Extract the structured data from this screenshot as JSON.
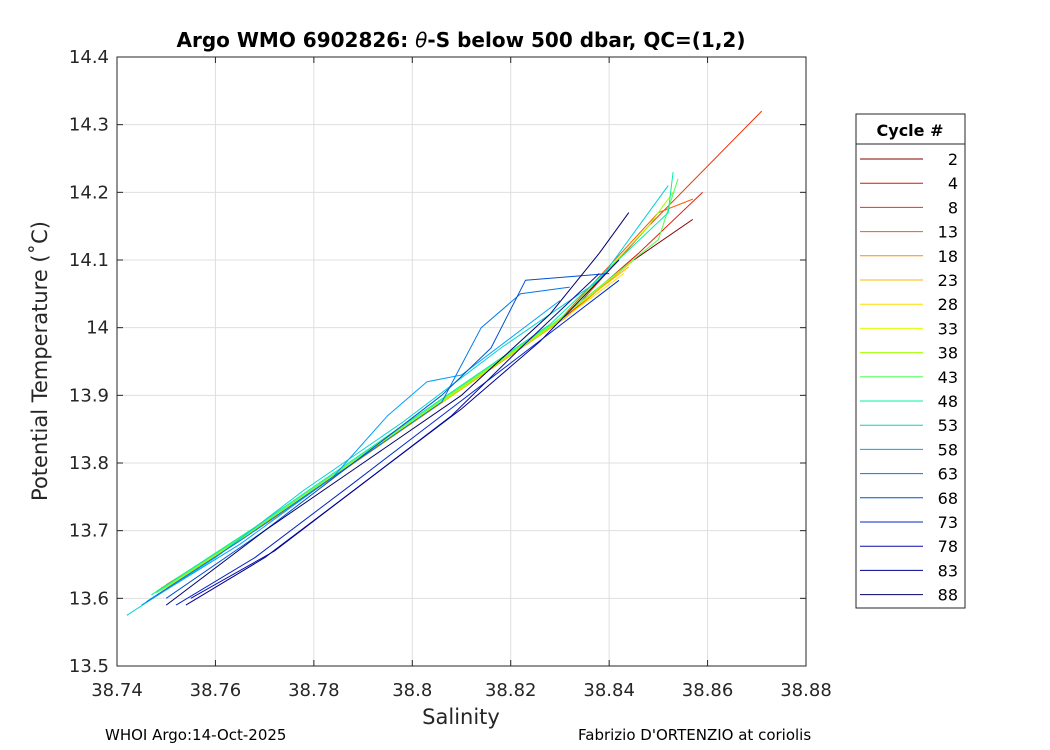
{
  "chart_data": {
    "type": "line",
    "title_parts": {
      "prefix": "Argo WMO 6902826: ",
      "theta": "θ",
      "suffix": "-S below 500 dbar,  QC=(1,2)"
    },
    "xlabel": "Salinity",
    "ylabel": "Potential Temperature (˚C)",
    "xlim": [
      38.74,
      38.88
    ],
    "ylim": [
      13.5,
      14.4
    ],
    "xticks": [
      38.74,
      38.76,
      38.78,
      38.8,
      38.82,
      38.84,
      38.86,
      38.88
    ],
    "xtick_labels": [
      "38.74",
      "38.76",
      "38.78",
      "38.8",
      "38.82",
      "38.84",
      "38.86",
      "38.88"
    ],
    "yticks": [
      13.5,
      13.6,
      13.7,
      13.8,
      13.9,
      14.0,
      14.1,
      14.2,
      14.3,
      14.4
    ],
    "ytick_labels": [
      "13.5",
      "13.6",
      "13.7",
      "13.8",
      "13.9",
      "14",
      "14.1",
      "14.2",
      "14.3",
      "14.4"
    ],
    "grid": true,
    "legend": {
      "title": "Cycle #",
      "placement": "right"
    },
    "series": [
      {
        "name": "2",
        "color": "#800000",
        "salinity": [
          38.748,
          38.77,
          38.79,
          38.81,
          38.83,
          38.845,
          38.857
        ],
        "theta": [
          13.61,
          13.71,
          13.81,
          13.91,
          14.01,
          14.1,
          14.16
        ]
      },
      {
        "name": "4",
        "color": "#e61000",
        "salinity": [
          38.749,
          38.771,
          38.791,
          38.811,
          38.831,
          38.846,
          38.859
        ],
        "theta": [
          13.615,
          13.715,
          13.815,
          13.915,
          14.015,
          14.11,
          14.2
        ]
      },
      {
        "name": "8",
        "color": "#f23000",
        "salinity": [
          38.75,
          38.772,
          38.792,
          38.812,
          38.832,
          38.848,
          38.871
        ],
        "theta": [
          13.62,
          13.72,
          13.82,
          13.92,
          14.02,
          14.15,
          14.32
        ]
      },
      {
        "name": "13",
        "color": "#ff5a00",
        "salinity": [
          38.748,
          38.77,
          38.79,
          38.81,
          38.83,
          38.85,
          38.857
        ],
        "theta": [
          13.61,
          13.712,
          13.812,
          13.912,
          14.012,
          14.17,
          14.19
        ]
      },
      {
        "name": "18",
        "color": "#ff8c00",
        "salinity": [
          38.749,
          38.771,
          38.791,
          38.811,
          38.831,
          38.845
        ],
        "theta": [
          13.612,
          13.714,
          13.814,
          13.914,
          14.014,
          14.1
        ]
      },
      {
        "name": "23",
        "color": "#ffb400",
        "salinity": [
          38.749,
          38.77,
          38.79,
          38.81,
          38.83,
          38.844
        ],
        "theta": [
          13.613,
          13.713,
          13.813,
          13.913,
          14.013,
          14.09
        ]
      },
      {
        "name": "28",
        "color": "#ffdc00",
        "salinity": [
          38.75,
          38.771,
          38.791,
          38.811,
          38.831,
          38.843
        ],
        "theta": [
          13.615,
          13.715,
          13.815,
          13.915,
          14.015,
          14.08
        ]
      },
      {
        "name": "33",
        "color": "#dcff00",
        "salinity": [
          38.749,
          38.77,
          38.79,
          38.81,
          38.83,
          38.845
        ],
        "theta": [
          13.612,
          13.712,
          13.812,
          13.912,
          14.012,
          14.1
        ]
      },
      {
        "name": "38",
        "color": "#a0ff00",
        "salinity": [
          38.748,
          38.77,
          38.79,
          38.81,
          38.83,
          38.848,
          38.853
        ],
        "theta": [
          13.61,
          13.71,
          13.81,
          13.91,
          14.01,
          14.15,
          14.2
        ]
      },
      {
        "name": "43",
        "color": "#50ff50",
        "salinity": [
          38.748,
          38.769,
          38.789,
          38.809,
          38.829,
          38.85,
          38.854
        ],
        "theta": [
          13.608,
          13.708,
          13.808,
          13.908,
          14.008,
          14.13,
          14.22
        ]
      },
      {
        "name": "48",
        "color": "#00f0a0",
        "salinity": [
          38.747,
          38.768,
          38.788,
          38.808,
          38.828,
          38.852,
          38.853
        ],
        "theta": [
          13.605,
          13.705,
          13.805,
          13.905,
          14.005,
          14.17,
          14.23
        ]
      },
      {
        "name": "53",
        "color": "#00d2d2",
        "salinity": [
          38.742,
          38.76,
          38.778,
          38.798,
          38.818,
          38.838,
          38.852
        ],
        "theta": [
          13.575,
          13.66,
          13.76,
          13.86,
          13.97,
          14.07,
          14.21
        ]
      },
      {
        "name": "58",
        "color": "#00a0ff",
        "salinity": [
          38.745,
          38.765,
          38.784,
          38.795,
          38.803,
          38.81,
          38.83
        ],
        "theta": [
          13.59,
          13.68,
          13.78,
          13.87,
          13.92,
          13.93,
          14.04
        ]
      },
      {
        "name": "63",
        "color": "#0078e6",
        "salinity": [
          38.746,
          38.766,
          38.786,
          38.806,
          38.814,
          38.822,
          38.832
        ],
        "theta": [
          13.595,
          13.69,
          13.79,
          13.89,
          14.0,
          14.05,
          14.06
        ]
      },
      {
        "name": "68",
        "color": "#0050d2",
        "salinity": [
          38.75,
          38.77,
          38.788,
          38.806,
          38.816,
          38.823,
          38.84
        ],
        "theta": [
          13.6,
          13.7,
          13.8,
          13.9,
          13.97,
          14.07,
          14.08
        ]
      },
      {
        "name": "73",
        "color": "#0028c8",
        "salinity": [
          38.752,
          38.768,
          38.788,
          38.806,
          38.824,
          38.842
        ],
        "theta": [
          13.59,
          13.66,
          13.77,
          13.87,
          13.97,
          14.07
        ]
      },
      {
        "name": "78",
        "color": "#0a0aaa",
        "salinity": [
          38.755,
          38.772,
          38.79,
          38.808,
          38.822,
          38.838
        ],
        "theta": [
          13.6,
          13.67,
          13.77,
          13.87,
          13.97,
          14.08
        ]
      },
      {
        "name": "83",
        "color": "#000090",
        "salinity": [
          38.754,
          38.77,
          38.79,
          38.81,
          38.826,
          38.842
        ],
        "theta": [
          13.59,
          13.66,
          13.77,
          13.88,
          13.98,
          14.1
        ]
      },
      {
        "name": "88",
        "color": "#00006e",
        "salinity": [
          38.75,
          38.77,
          38.79,
          38.81,
          38.828,
          38.838,
          38.844
        ],
        "theta": [
          13.59,
          13.7,
          13.8,
          13.9,
          14.02,
          14.11,
          14.17
        ]
      }
    ]
  },
  "footer": {
    "left": "WHOI Argo:14-Oct-2025",
    "right": "Fabrizio D'ORTENZIO at coriolis"
  }
}
